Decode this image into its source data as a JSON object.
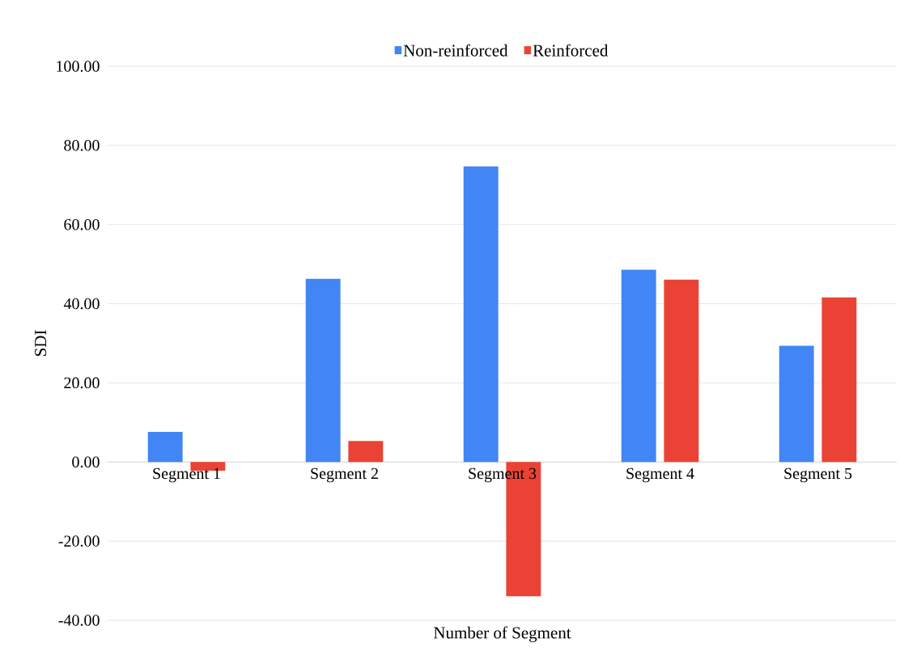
{
  "chart_data": {
    "type": "bar",
    "xlabel": "Number of Segment",
    "ylabel": "SDI",
    "categories": [
      "Segment 1",
      "Segment 2",
      "Segment 3",
      "Segment 4",
      "Segment 5"
    ],
    "series": [
      {
        "name": "Non-reinforced",
        "color": "#4285f4",
        "values": [
          7.6,
          46.3,
          74.7,
          48.6,
          29.4
        ]
      },
      {
        "name": "Reinforced",
        "color": "#ea4335",
        "values": [
          -2.2,
          5.3,
          -33.9,
          46.1,
          41.6
        ]
      }
    ],
    "ylim": [
      -40,
      100
    ],
    "yticks": [
      {
        "value": -40,
        "label": "-40.00"
      },
      {
        "value": -20,
        "label": "-20.00"
      },
      {
        "value": 0,
        "label": "0.00"
      },
      {
        "value": 20,
        "label": "20.00"
      },
      {
        "value": 40,
        "label": "40.00"
      },
      {
        "value": 60,
        "label": "60.00"
      },
      {
        "value": 80,
        "label": "80.00"
      },
      {
        "value": 100,
        "label": "100.00"
      }
    ],
    "grid": "y",
    "legend": "top"
  }
}
